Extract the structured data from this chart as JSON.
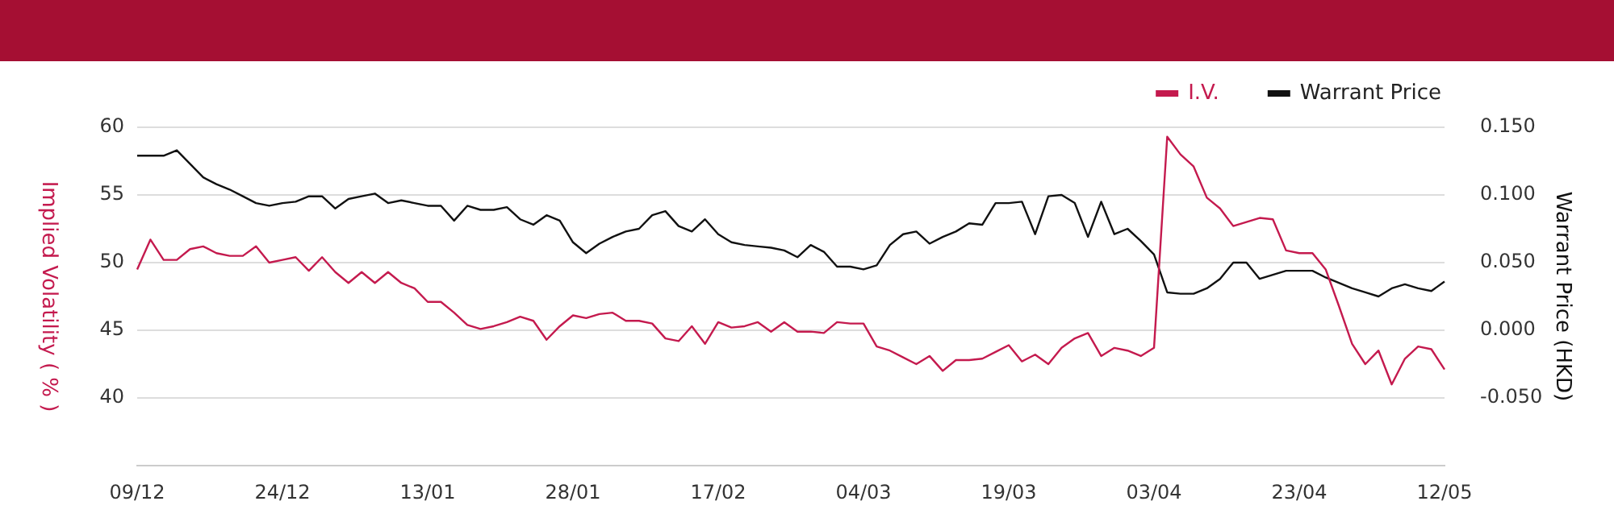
{
  "chart_data": {
    "type": "line",
    "categories": [
      "09/12",
      null,
      null,
      null,
      null,
      null,
      null,
      null,
      null,
      null,
      null,
      "24/12",
      null,
      null,
      null,
      null,
      null,
      null,
      null,
      null,
      null,
      null,
      "13/01",
      null,
      null,
      null,
      null,
      null,
      null,
      null,
      null,
      null,
      null,
      "28/01",
      null,
      null,
      null,
      null,
      null,
      null,
      null,
      null,
      null,
      null,
      "17/02",
      null,
      null,
      null,
      null,
      null,
      null,
      null,
      null,
      null,
      null,
      "04/03",
      null,
      null,
      null,
      null,
      null,
      null,
      null,
      null,
      null,
      null,
      "19/03",
      null,
      null,
      null,
      null,
      null,
      null,
      null,
      null,
      null,
      null,
      "03/04",
      null,
      null,
      null,
      null,
      null,
      null,
      null,
      null,
      null,
      null,
      "23/04",
      null,
      null,
      null,
      null,
      null,
      null,
      null,
      null,
      null,
      null,
      "12/05"
    ],
    "ylabel": "Implied Volatility ( % )",
    "y2label": "Warrant Price (HKD)",
    "ylim": [
      35,
      60
    ],
    "yticks": [
      40,
      45,
      50,
      55,
      60
    ],
    "y2lim": [
      -0.1,
      0.15
    ],
    "y2ticks": [
      {
        "value": -0.05,
        "label": "-0.050"
      },
      {
        "value": 0,
        "label": "0.000"
      },
      {
        "value": 0.05,
        "label": "0.050"
      },
      {
        "value": 0.1,
        "label": "0.100"
      },
      {
        "value": 0.15,
        "label": "0.150"
      }
    ],
    "grid": "y",
    "legend": "top right",
    "marker": "none",
    "line_style": "solid",
    "series": [
      {
        "name": "I.V.",
        "color": "#c41a4e",
        "values": [
          49.5,
          51.7,
          50.2,
          50.2,
          51.0,
          51.2,
          50.7,
          50.5,
          50.5,
          51.2,
          50.0,
          50.2,
          50.4,
          49.4,
          50.4,
          49.3,
          48.5,
          49.3,
          48.5,
          49.3,
          48.5,
          48.1,
          47.1,
          47.1,
          46.3,
          45.4,
          45.1,
          45.3,
          45.6,
          46.0,
          45.7,
          44.3,
          45.3,
          46.1,
          45.9,
          46.2,
          46.3,
          45.7,
          45.7,
          45.5,
          44.4,
          44.2,
          45.3,
          44.0,
          45.6,
          45.2,
          45.3,
          45.6,
          44.9,
          45.6,
          44.9,
          44.9,
          44.8,
          45.6,
          45.5,
          45.5,
          43.8,
          43.5,
          43.0,
          42.5,
          43.1,
          42.0,
          42.8,
          42.8,
          42.9,
          43.4,
          43.9,
          42.7,
          43.2,
          42.5,
          43.7,
          44.4,
          44.8,
          43.1,
          43.7,
          43.5,
          43.1,
          43.7,
          59.3,
          58.0,
          57.1,
          54.8,
          54.0,
          52.7,
          53.0,
          53.3,
          53.2,
          50.9,
          50.7,
          50.7,
          49.5,
          46.8,
          44.0,
          42.5,
          43.5,
          41.0,
          42.9,
          43.8,
          43.6,
          42.1
        ]
      },
      {
        "name": "Warrant Price",
        "color": "#111111",
        "axis": "y2",
        "values": [
          0.129,
          0.129,
          0.129,
          0.133,
          0.123,
          0.113,
          0.108,
          0.104,
          0.099,
          0.094,
          0.092,
          0.094,
          0.095,
          0.099,
          0.099,
          0.09,
          0.097,
          0.099,
          0.101,
          0.094,
          0.096,
          0.094,
          0.092,
          0.092,
          0.081,
          0.092,
          0.089,
          0.089,
          0.091,
          0.082,
          0.078,
          0.085,
          0.081,
          0.065,
          0.057,
          0.064,
          0.069,
          0.073,
          0.075,
          0.085,
          0.088,
          0.077,
          0.073,
          0.082,
          0.071,
          0.065,
          0.063,
          0.062,
          0.061,
          0.059,
          0.054,
          0.063,
          0.058,
          0.047,
          0.047,
          0.045,
          0.048,
          0.063,
          0.071,
          0.073,
          0.064,
          0.069,
          0.073,
          0.079,
          0.078,
          0.094,
          0.094,
          0.095,
          0.071,
          0.099,
          0.1,
          0.094,
          0.069,
          0.095,
          0.071,
          0.075,
          0.066,
          0.056,
          0.028,
          0.027,
          0.027,
          0.031,
          0.038,
          0.05,
          0.05,
          0.038,
          0.041,
          0.044,
          0.044,
          0.044,
          0.039,
          0.035,
          0.031,
          0.028,
          0.025,
          0.031,
          0.034,
          0.031,
          0.029,
          0.036
        ]
      }
    ]
  }
}
